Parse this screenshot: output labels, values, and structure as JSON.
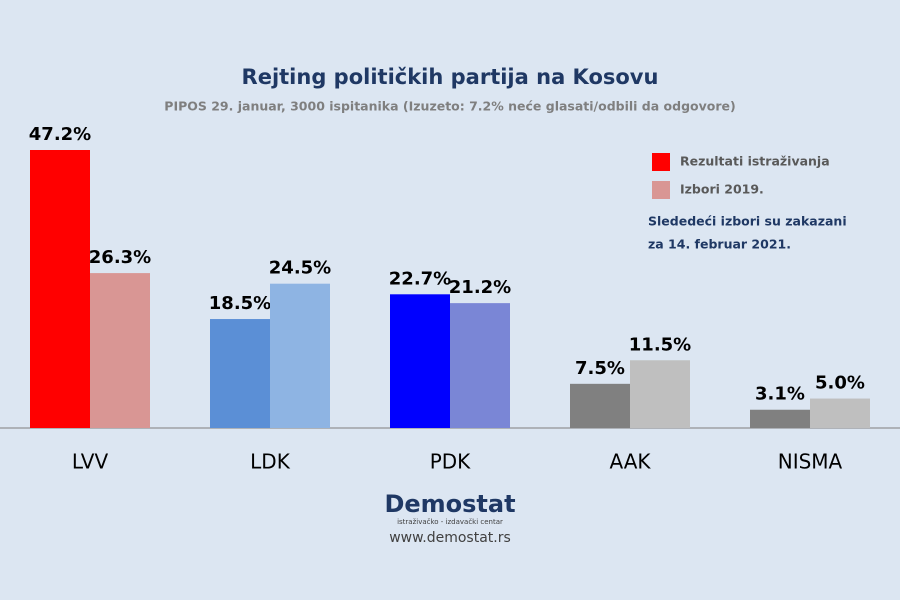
{
  "chart_data": {
    "type": "bar",
    "title": "Rejting političkih partija na Kosovu",
    "subtitle": "PIPOS 29. januar, 3000 ispitanika (Izuzeto: 7.2% neće glasati/odbili da odgovore)",
    "categories": [
      "LVV",
      "LDK",
      "PDK",
      "AAK",
      "NISMA"
    ],
    "series": [
      {
        "name": "Rezultati istraživanja",
        "color": "#ff0000",
        "colors": [
          "#ff0000",
          "#5b8fd6",
          "#0000ff",
          "#808080",
          "#808080"
        ],
        "values": [
          47.2,
          18.5,
          22.7,
          7.5,
          3.1
        ],
        "value_labels": [
          "47.2%",
          "18.5%",
          "22.7%",
          "7.5%",
          "3.1%"
        ]
      },
      {
        "name": "Izbori 2019.",
        "color": "#d99694",
        "colors": [
          "#d99694",
          "#8eb4e3",
          "#7a86d6",
          "#bfbfbf",
          "#bfbfbf"
        ],
        "values": [
          26.3,
          24.5,
          21.2,
          11.5,
          5.0
        ],
        "value_labels": [
          "26.3%",
          "24.5%",
          "21.2%",
          "11.5%",
          "5.0%"
        ]
      }
    ],
    "annotation": [
      "Slededeći izbori su zakazani",
      "za 14. februar 2021."
    ],
    "logo": "Demostat",
    "logo_tagline": "istraživačko - izdavački centar",
    "website": "www.demostat.rs"
  }
}
